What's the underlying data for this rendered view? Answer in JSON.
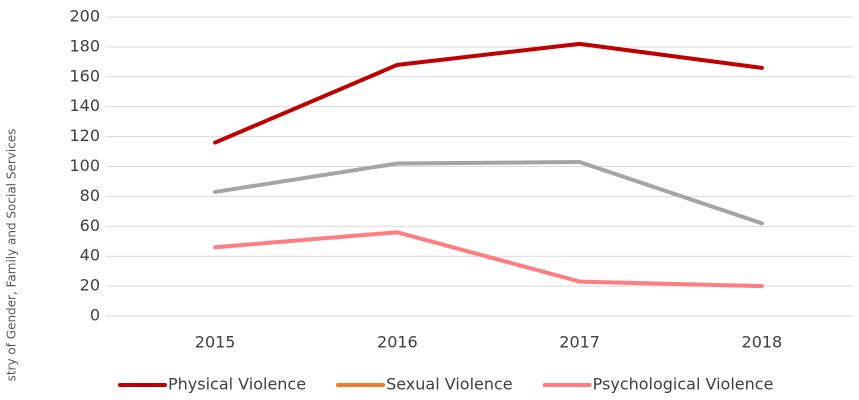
{
  "chart_data": {
    "type": "line",
    "y_axis_label": "stry of Gender, Family and Social Services",
    "categories": [
      "2015",
      "2016",
      "2017",
      "2018"
    ],
    "series": [
      {
        "name": "Physical Violence",
        "color": "#c00000",
        "values": [
          116,
          168,
          182,
          166
        ]
      },
      {
        "color": "#a5a5a5",
        "values": [
          83,
          102,
          103,
          62
        ]
      },
      {
        "name": "Sexual Violence",
        "color": "#ed7d31",
        "values": [
          null,
          null,
          null,
          null
        ]
      },
      {
        "name": "Psychological Violence",
        "color": "#ff7c80",
        "values": [
          46,
          56,
          23,
          20
        ]
      }
    ],
    "ylim": [
      0,
      200
    ],
    "yticks": [
      0,
      20,
      40,
      60,
      80,
      100,
      120,
      140,
      160,
      180,
      200
    ],
    "grid": true,
    "legend": "bottom"
  }
}
